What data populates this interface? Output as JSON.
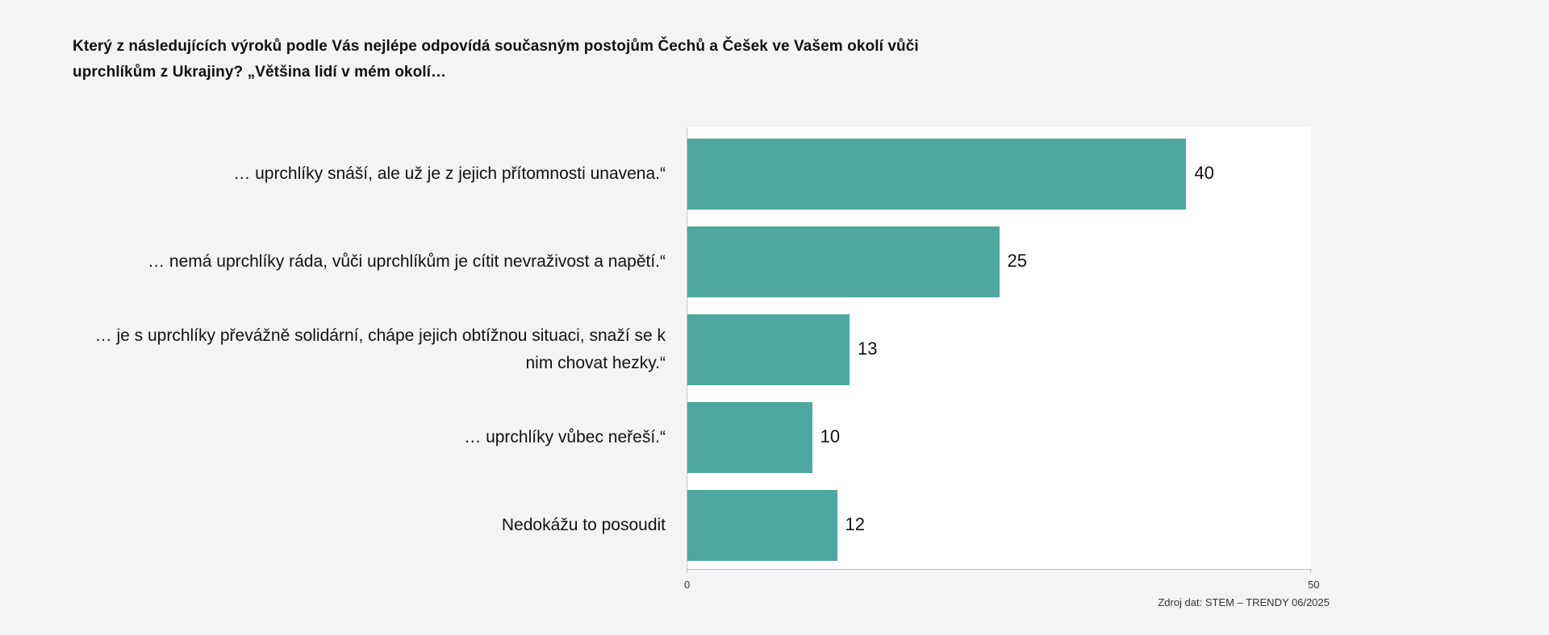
{
  "header": {
    "title": "Který z následujících výroků podle Vás nejlépe odpovídá současným postojům Čechů a Češek ve Vašem okolí vůči uprchlíkům z Ukrajiny? „Většina lidí v mém okolí…"
  },
  "chart_data": {
    "type": "bar",
    "orientation": "horizontal",
    "categories": [
      "… uprchlíky snáší, ale už je z jejich přítomnosti unavena.“",
      "… nemá uprchlíky ráda, vůči uprchlíkům je cítit nevraživost a napětí.“",
      "… je s uprchlíky převážně solidární, chápe jejich obtížnou situaci, snaží se k nim chovat hezky.“",
      "… uprchlíky vůbec neřeší.“",
      "Nedokážu to posoudit"
    ],
    "values": [
      40,
      25,
      13,
      10,
      12
    ],
    "xlim": [
      0,
      50
    ],
    "ticks": [
      "0",
      "50"
    ],
    "bar_color": "#4ea8a0",
    "source": "Zdroj dat: STEM – TRENDY 06/2025"
  }
}
